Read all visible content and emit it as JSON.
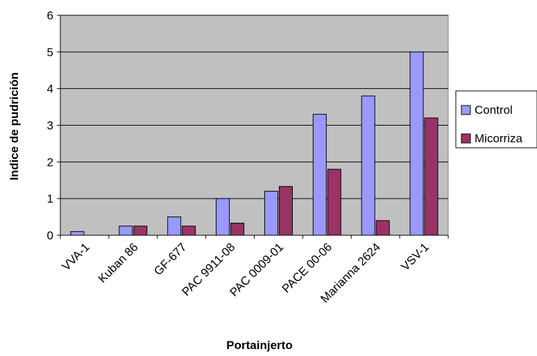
{
  "chart_data": {
    "type": "bar",
    "categories": [
      "VVA-1",
      "Kuban 86",
      "GF-677",
      "PAC 9911-08",
      "PAC 0009-01",
      "PACE 00-06",
      "Marianna 2624",
      "VSV-1"
    ],
    "series": [
      {
        "name": "Control",
        "values": [
          0.1,
          0.25,
          0.5,
          1.0,
          1.2,
          3.3,
          3.8,
          5.0
        ]
      },
      {
        "name": "Micorriza",
        "values": [
          0,
          0.25,
          0.25,
          0.33,
          1.33,
          1.8,
          0.4,
          3.2
        ]
      }
    ],
    "xlabel": "Portainjerto",
    "ylabel": "Indice de pudrición",
    "ylim": [
      0,
      6
    ],
    "yticks": [
      "0",
      "1",
      "2",
      "3",
      "4",
      "5",
      "6"
    ],
    "grid": true,
    "legend_position": "right",
    "colors": {
      "plot_background": "#c0c0c0",
      "gridline": "#000000",
      "Control": "#9999ff",
      "Micorriza": "#993366"
    }
  }
}
